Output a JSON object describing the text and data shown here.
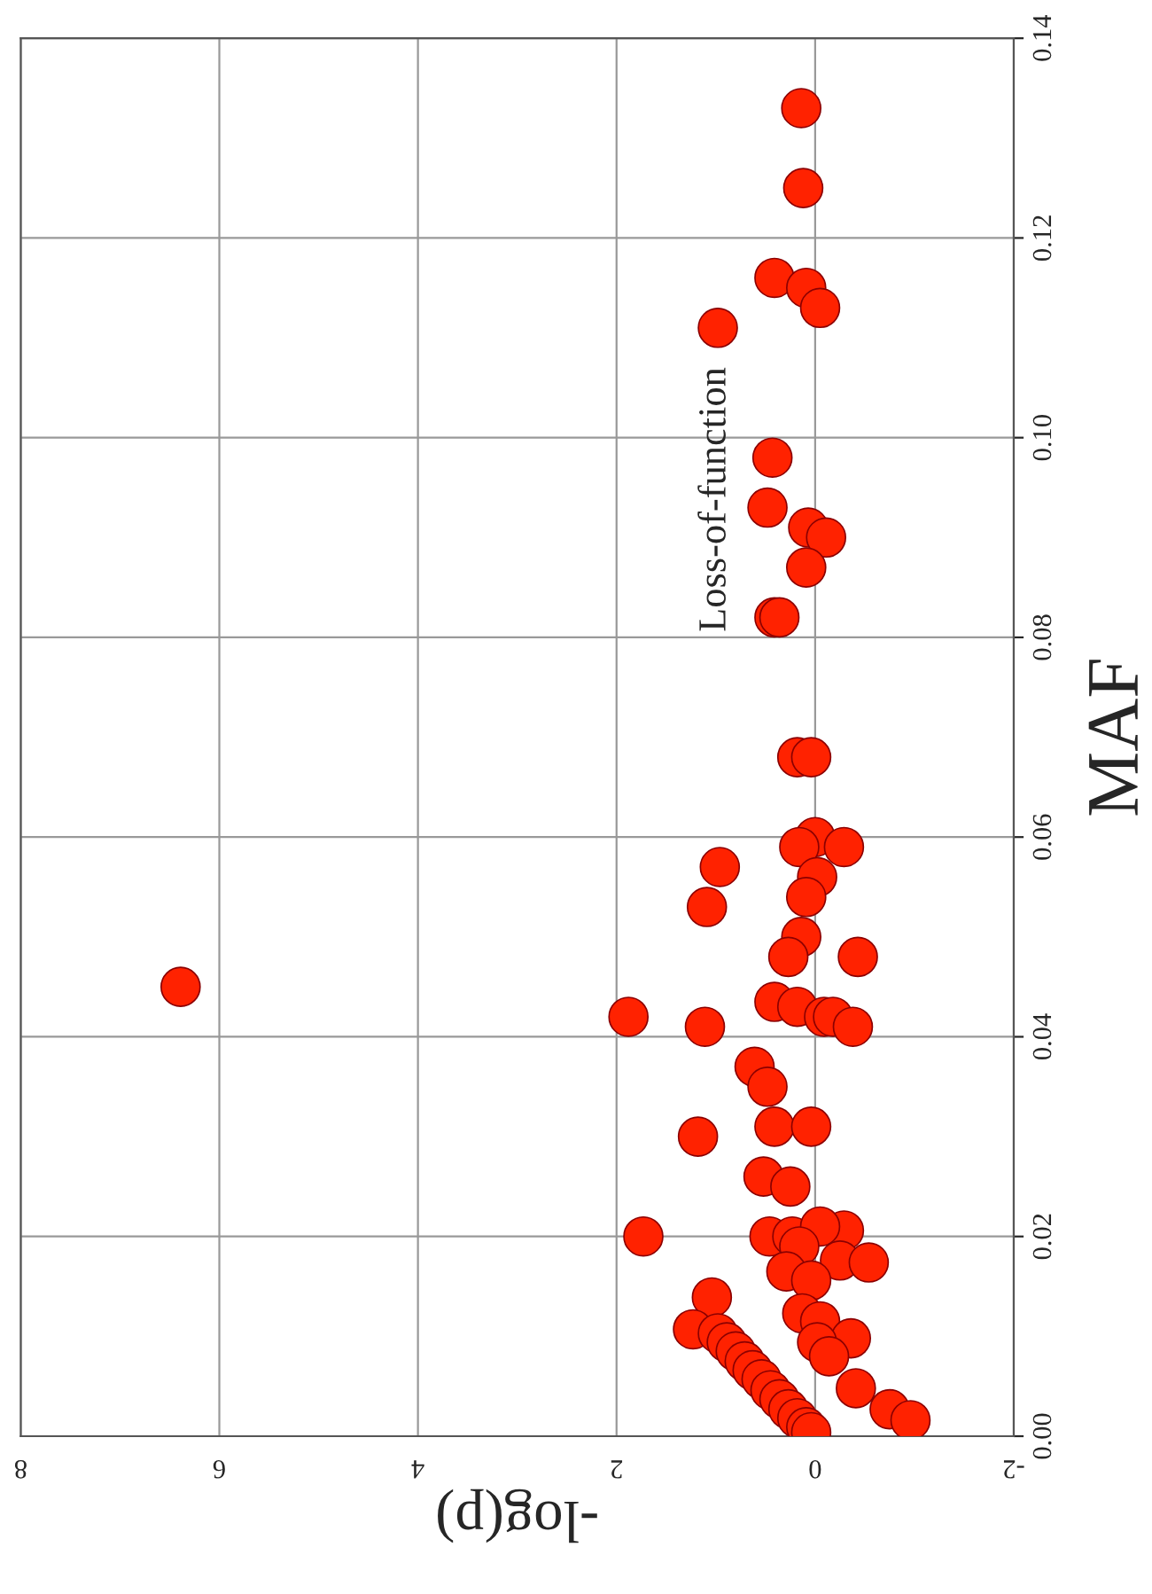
{
  "chart_data": {
    "type": "scatter",
    "xlabel": "-log(p)",
    "ylabel": "MAF",
    "annotations": [
      "Loss-of-function"
    ],
    "xlim": [
      8,
      -2
    ],
    "ylim": [
      0,
      0.14
    ],
    "xticks": [
      8,
      6,
      4,
      2,
      0,
      {
        "value": -2,
        "label": "-2"
      }
    ],
    "yticks": [
      {
        "value": 0,
        "label": "0.00"
      },
      {
        "value": 0.02,
        "label": "0.02"
      },
      {
        "value": 0.04,
        "label": "0.04"
      },
      {
        "value": 0.06,
        "label": "0.06"
      },
      {
        "value": 0.08,
        "label": "0.08"
      },
      {
        "value": 0.1,
        "label": "0.10"
      },
      {
        "value": 0.12,
        "label": "0.12"
      },
      {
        "value": 0.14,
        "label": "0.14"
      }
    ],
    "grid": true,
    "marker": "circle",
    "series": [
      {
        "color": "#ff2200",
        "x": [
          0.14,
          0.12,
          0.41,
          0.09,
          0.98,
          -0.05,
          0.43,
          0.48,
          0.07,
          -0.11,
          0.09,
          0.41,
          0.36,
          0.18,
          0.04,
          0.96,
          0,
          0.16,
          -0.29,
          -0.02,
          0.09,
          1.09,
          0.14,
          0.27,
          -0.43,
          6.39,
          0.41,
          0.18,
          -0.09,
          -0.18,
          1.88,
          -0.38,
          1.11,
          0.61,
          0.48,
          0.41,
          0.04,
          1.18,
          0.52,
          0.25,
          1.73,
          0.46,
          0.23,
          -0.29,
          -0.05,
          0.16,
          -0.25,
          -0.54,
          0.29,
          0.04,
          1.04,
          0.13,
          -0.05,
          1.23,
          -0.36,
          -0.02,
          -0.14,
          -0.41,
          -0.75,
          -0.96,
          0.98,
          0.89,
          0.8,
          0.71,
          0.63,
          0.54,
          0.45,
          0.36,
          0.27,
          0.18,
          0.09,
          0.04
        ],
        "values": [
          0.133,
          0.125,
          0.116,
          0.115,
          0.111,
          0.113,
          0.098,
          0.093,
          0.091,
          0.09,
          0.087,
          0.082,
          0.082,
          0.068,
          0.068,
          0.057,
          0.06,
          0.059,
          0.059,
          0.056,
          0.054,
          0.053,
          0.05,
          0.048,
          0.048,
          0.045,
          0.0435,
          0.043,
          0.042,
          0.042,
          0.042,
          0.041,
          0.041,
          0.037,
          0.035,
          0.031,
          0.031,
          0.03,
          0.026,
          0.025,
          0.02,
          0.02,
          0.02,
          0.0206,
          0.021,
          0.019,
          0.0176,
          0.0174,
          0.0165,
          0.0156,
          0.0139,
          0.0123,
          0.0115,
          0.0107,
          0.0098,
          0.0094,
          0.008,
          0.0048,
          0.0027,
          0.0016,
          0.0103,
          0.0094,
          0.0085,
          0.0075,
          0.0066,
          0.0057,
          0.0046,
          0.0037,
          0.0027,
          0.0018,
          0.0009,
          0.0004
        ]
      }
    ]
  }
}
